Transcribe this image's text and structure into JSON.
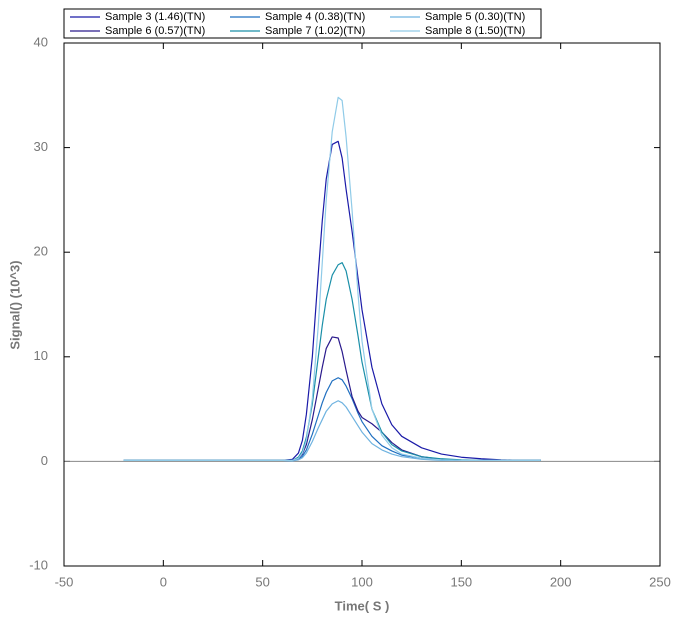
{
  "chart_data": {
    "type": "line",
    "x": [
      -20,
      -10,
      0,
      10,
      20,
      30,
      40,
      50,
      60,
      65,
      68,
      70,
      72,
      75,
      78,
      80,
      82,
      85,
      88,
      90,
      92,
      95,
      98,
      100,
      105,
      110,
      115,
      120,
      130,
      140,
      150,
      160,
      170,
      180,
      190
    ],
    "series": [
      {
        "name": "Sample 3 (1.46)(TN)",
        "color": "#1a1aa8",
        "values": [
          0.1,
          0.1,
          0.1,
          0.1,
          0.1,
          0.1,
          0.1,
          0.1,
          0.1,
          0.2,
          0.8,
          2,
          4.5,
          10,
          18,
          23,
          27,
          30.3,
          30.6,
          29,
          26,
          22,
          17.5,
          14.5,
          9,
          5.5,
          3.5,
          2.4,
          1.3,
          0.7,
          0.4,
          0.25,
          0.15,
          0.1,
          0.1
        ]
      },
      {
        "name": "Sample 4 (0.38)(TN)",
        "color": "#1f6fc0",
        "values": [
          0.1,
          0.1,
          0.1,
          0.1,
          0.1,
          0.1,
          0.1,
          0.1,
          0.1,
          0.05,
          0.2,
          0.5,
          1.1,
          2.6,
          4.4,
          5.6,
          6.6,
          7.7,
          8,
          7.8,
          7.2,
          6,
          4.6,
          3.8,
          2.4,
          1.5,
          1,
          0.6,
          0.3,
          0.15,
          0.1,
          0.1,
          0.1,
          0.1,
          0.1
        ]
      },
      {
        "name": "Sample 5 (0.30)(TN)",
        "color": "#6fb3e0",
        "values": [
          0.1,
          0.1,
          0.1,
          0.1,
          0.1,
          0.1,
          0.1,
          0.1,
          0.1,
          0.05,
          0.15,
          0.35,
          0.8,
          1.9,
          3.2,
          4,
          4.8,
          5.5,
          5.8,
          5.6,
          5.2,
          4.3,
          3.4,
          2.8,
          1.7,
          1.1,
          0.7,
          0.45,
          0.2,
          0.1,
          0.1,
          0.1,
          0.1,
          0.1,
          0.1
        ]
      },
      {
        "name": "Sample 6 (0.57)(TN)",
        "color": "#2a1a8c",
        "values": [
          0.1,
          0.1,
          0.1,
          0.1,
          0.1,
          0.1,
          0.1,
          0.1,
          0.1,
          0.1,
          0.3,
          0.7,
          1.6,
          4,
          7,
          9,
          10.8,
          11.9,
          11.8,
          10.5,
          8.7,
          6.2,
          4.8,
          4.2,
          3.6,
          2.8,
          1.8,
          1.1,
          0.45,
          0.2,
          0.1,
          0.1,
          0.1,
          0.1,
          0.1
        ]
      },
      {
        "name": "Sample 7 (1.02)(TN)",
        "color": "#1a8fa8",
        "values": [
          0.1,
          0.1,
          0.1,
          0.1,
          0.1,
          0.1,
          0.1,
          0.1,
          0.1,
          0.1,
          0.4,
          1,
          2.3,
          5.5,
          10,
          13,
          15.5,
          17.8,
          18.8,
          19,
          18.2,
          15.5,
          12,
          9.5,
          5,
          2.8,
          1.6,
          1,
          0.45,
          0.25,
          0.15,
          0.1,
          0.1,
          0.1,
          0.1
        ]
      },
      {
        "name": "Sample 8 (1.50)(TN)",
        "color": "#90cbe8",
        "values": [
          0.1,
          0.1,
          0.1,
          0.1,
          0.1,
          0.1,
          0.1,
          0.1,
          0.1,
          0.1,
          0.3,
          0.8,
          2,
          6,
          13,
          19,
          25,
          31.5,
          34.8,
          34.5,
          31,
          24,
          16,
          11.5,
          5,
          2.5,
          1.3,
          0.7,
          0.3,
          0.15,
          0.1,
          0.1,
          0.1,
          0.1,
          0.1
        ]
      }
    ],
    "x_label": "Time( S )",
    "y_label": "Signal() (10^3)",
    "xlim": [
      -50,
      250
    ],
    "xticks": [
      -50,
      0,
      50,
      100,
      150,
      200,
      250
    ],
    "ylim": [
      -10,
      40
    ],
    "yticks": [
      -10,
      0,
      10,
      20,
      30,
      40
    ],
    "zero_line": true
  }
}
